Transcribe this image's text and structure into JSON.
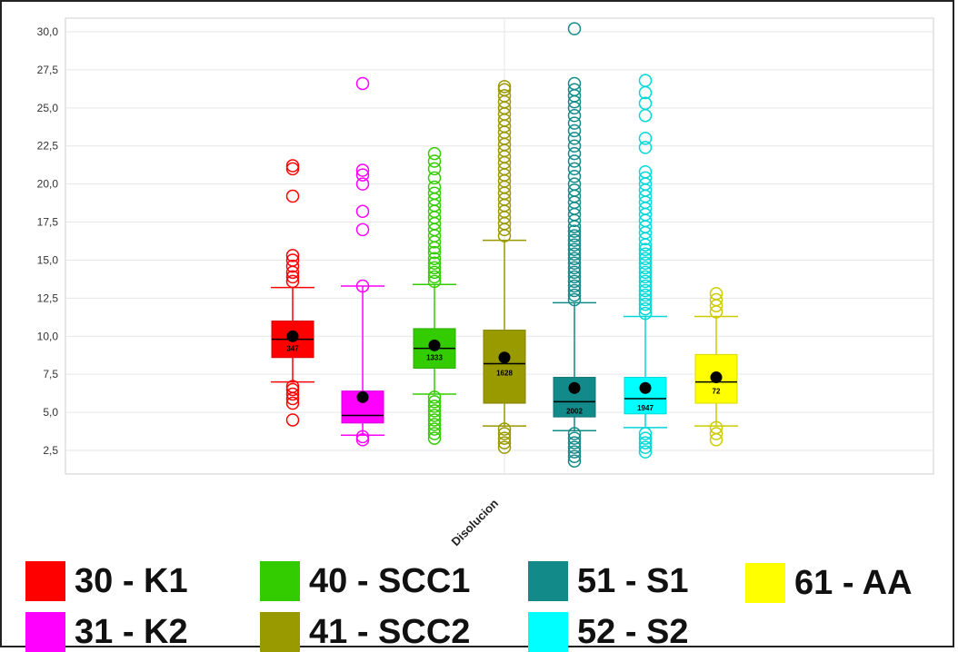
{
  "chart_data": {
    "type": "box",
    "xlabel": "",
    "ylabel": "",
    "categories": [
      "Disolucion"
    ],
    "ylim": [
      1.5,
      30.5
    ],
    "yticks": [
      "2,5",
      "5,0",
      "7,5",
      "10,0",
      "12,5",
      "15,0",
      "17,5",
      "20,0",
      "22,5",
      "25,0",
      "27,5",
      "30,0"
    ],
    "ytick_values": [
      2.5,
      5.0,
      7.5,
      10.0,
      12.5,
      15.0,
      17.5,
      20.0,
      22.5,
      25.0,
      27.5,
      30.0
    ],
    "grid": true,
    "legend_position": "bottom",
    "series": [
      {
        "name": "30 - K1",
        "color": "#ff0000",
        "count_label": "347",
        "whisker_low": 7.0,
        "q1": 8.6,
        "median": 9.8,
        "q3": 11.0,
        "whisker_high": 13.2,
        "mean": 10.0,
        "outliers": [
          4.5,
          5.6,
          5.9,
          6.2,
          6.5,
          6.7,
          13.6,
          13.9,
          14.2,
          14.6,
          15.0,
          15.3,
          19.2,
          21.0,
          21.2
        ]
      },
      {
        "name": "31 - K2",
        "color": "#ff00ff",
        "count_label": "",
        "whisker_low": 3.5,
        "q1": 4.3,
        "median": 4.8,
        "q3": 6.4,
        "whisker_high": 13.3,
        "mean": 6.0,
        "outliers": [
          3.2,
          3.4,
          13.3,
          17.0,
          18.2,
          20.0,
          20.6,
          20.9,
          26.6
        ]
      },
      {
        "name": "40 - SCC1",
        "color": "#33cc00",
        "count_label": "1333",
        "whisker_low": 6.2,
        "q1": 7.9,
        "median": 9.2,
        "q3": 10.5,
        "whisker_high": 13.4,
        "mean": 9.4,
        "outliers": [
          3.3,
          3.6,
          3.9,
          4.2,
          4.5,
          4.8,
          5.1,
          5.4,
          5.7,
          6.0,
          13.6,
          13.9,
          14.2,
          14.5,
          14.8,
          15.1,
          15.5,
          15.8,
          16.2,
          16.6,
          17.0,
          17.4,
          17.8,
          18.2,
          18.6,
          19.0,
          19.4,
          19.8,
          20.4,
          21.0,
          21.5,
          22.0
        ]
      },
      {
        "name": "41 - SCC2",
        "color": "#999900",
        "count_label": "1628",
        "whisker_low": 4.1,
        "q1": 5.6,
        "median": 8.2,
        "q3": 10.4,
        "whisker_high": 16.3,
        "mean": 8.6,
        "outliers": [
          2.7,
          3.0,
          3.3,
          3.6,
          3.9,
          16.6,
          17.0,
          17.4,
          17.8,
          18.2,
          18.6,
          19.0,
          19.4,
          19.8,
          20.2,
          20.6,
          21.0,
          21.4,
          21.8,
          22.2,
          22.6,
          23.0,
          23.4,
          23.8,
          24.2,
          24.6,
          25.0,
          25.4,
          25.8,
          26.2,
          26.4
        ]
      },
      {
        "name": "51 - S1",
        "color": "#138a8a",
        "count_label": "2002",
        "whisker_low": 3.8,
        "q1": 4.7,
        "median": 5.7,
        "q3": 7.3,
        "whisker_high": 12.2,
        "mean": 6.6,
        "outliers": [
          1.8,
          2.1,
          2.4,
          2.7,
          3.0,
          3.3,
          3.6,
          12.4,
          12.7,
          13.0,
          13.3,
          13.6,
          13.9,
          14.2,
          14.5,
          14.8,
          15.1,
          15.4,
          15.7,
          16.0,
          16.3,
          16.6,
          16.9,
          17.2,
          17.6,
          18.0,
          18.4,
          18.8,
          19.2,
          19.6,
          20.0,
          20.5,
          21.0,
          21.5,
          22.0,
          22.5,
          23.0,
          23.5,
          24.0,
          24.5,
          25.0,
          25.4,
          25.8,
          26.2,
          26.6,
          30.2
        ]
      },
      {
        "name": "52 - S2",
        "color": "#00ffff",
        "count_label": "1947",
        "whisker_low": 4.0,
        "q1": 4.9,
        "median": 5.9,
        "q3": 7.3,
        "whisker_high": 11.3,
        "mean": 6.6,
        "outliers": [
          2.4,
          2.7,
          3.0,
          3.3,
          3.6,
          11.5,
          11.8,
          12.1,
          12.4,
          12.7,
          13.0,
          13.3,
          13.6,
          13.9,
          14.2,
          14.5,
          14.8,
          15.1,
          15.4,
          15.7,
          16.0,
          16.4,
          16.8,
          17.2,
          17.6,
          18.0,
          18.4,
          18.8,
          19.2,
          19.6,
          20.0,
          20.4,
          20.8,
          22.4,
          23.0,
          24.5,
          25.3,
          26.0,
          26.8
        ]
      },
      {
        "name": "61 - AA",
        "color": "#ffff00",
        "count_label": "72",
        "whisker_low": 4.1,
        "q1": 5.6,
        "median": 7.0,
        "q3": 8.8,
        "whisker_high": 11.3,
        "mean": 7.3,
        "outliers": [
          3.2,
          3.6,
          4.0,
          11.6,
          12.0,
          12.4,
          12.8
        ]
      }
    ]
  },
  "legend": [
    {
      "label": "30 - K1",
      "color": "#ff0000"
    },
    {
      "label": "31 - K2",
      "color": "#ff00ff"
    },
    {
      "label": "40 - SCC1",
      "color": "#33cc00"
    },
    {
      "label": "41 - SCC2",
      "color": "#999900"
    },
    {
      "label": "51 - S1",
      "color": "#138a8a"
    },
    {
      "label": "52 - S2",
      "color": "#00ffff"
    },
    {
      "label": "61 - AA",
      "color": "#ffff00"
    }
  ]
}
